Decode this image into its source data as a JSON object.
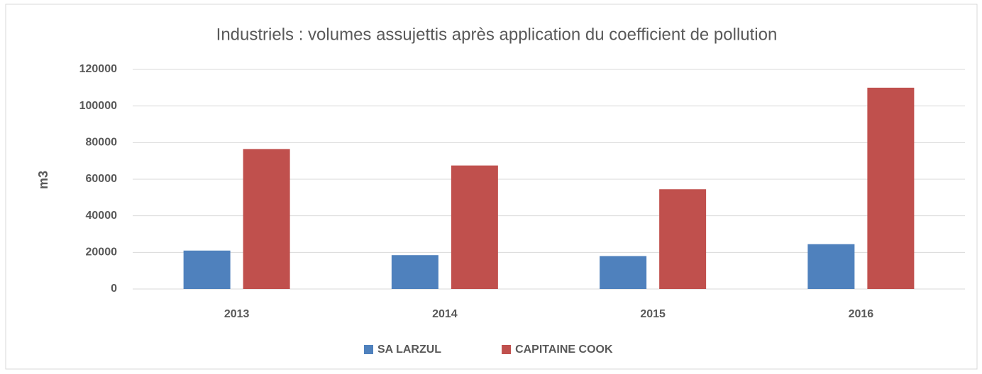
{
  "chart_data": {
    "type": "bar",
    "title": "Industriels : volumes assujettis après application du coefficient de pollution",
    "y_label": "m3",
    "categories": [
      "2013",
      "2014",
      "2015",
      "2016"
    ],
    "series": [
      {
        "name": "SA LARZUL",
        "color": "#4f81bd",
        "values": [
          21000,
          18500,
          18000,
          24500
        ]
      },
      {
        "name": "CAPITAINE COOK",
        "color": "#c0504d",
        "values": [
          76500,
          67500,
          54500,
          110000
        ]
      }
    ],
    "ylim": [
      0,
      120000
    ],
    "yticks": [
      0,
      20000,
      40000,
      60000,
      80000,
      100000,
      120000
    ],
    "grid": true,
    "legend": "bottom"
  }
}
